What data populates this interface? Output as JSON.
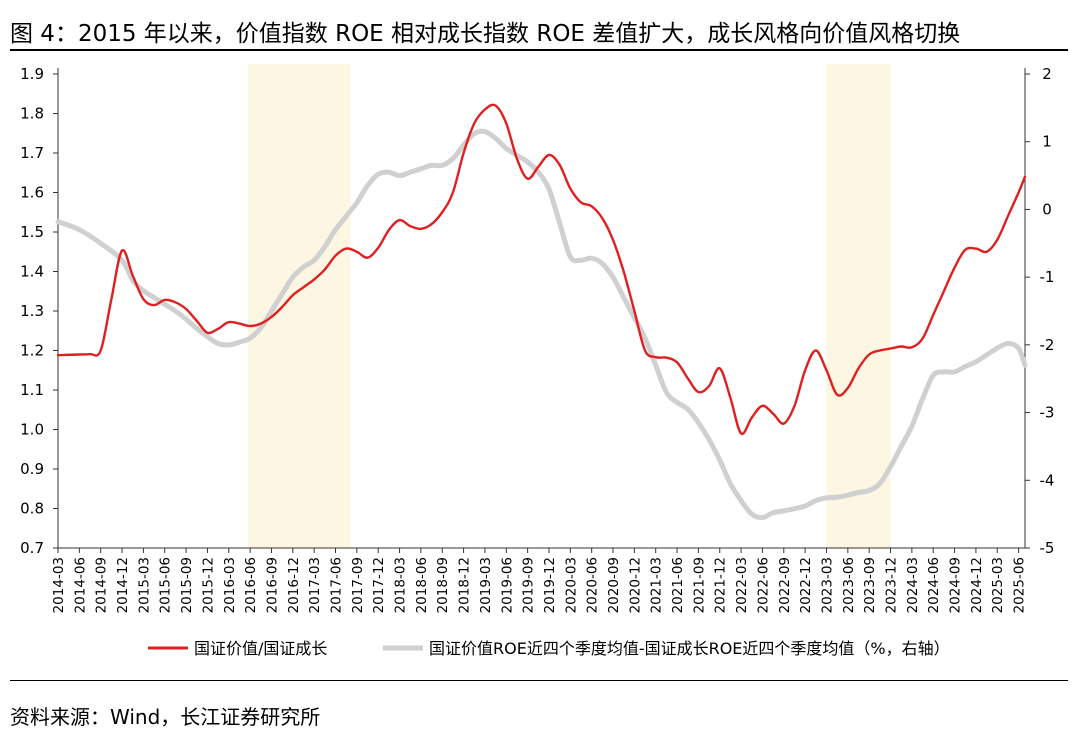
{
  "title": "图 4：2015 年以来，价值指数 ROE 相对成长指数 ROE 差值扩大，成长风格向价值风格切换",
  "source": "资料来源：Wind，长江证券研究所",
  "colors": {
    "red": "#e01f20",
    "gray": "#d0d0d0",
    "shade": "#fdf6e3",
    "axis": "#333333"
  },
  "chart_data": {
    "type": "line",
    "x_ticks": [
      "2014-03",
      "2014-06",
      "2014-09",
      "2014-12",
      "2015-03",
      "2015-06",
      "2015-09",
      "2015-12",
      "2016-03",
      "2016-06",
      "2016-09",
      "2016-12",
      "2017-03",
      "2017-06",
      "2017-09",
      "2017-12",
      "2018-03",
      "2018-06",
      "2018-09",
      "2018-12",
      "2019-03",
      "2019-06",
      "2019-09",
      "2019-12",
      "2020-03",
      "2020-06",
      "2020-09",
      "2020-12",
      "2021-03",
      "2021-06",
      "2021-09",
      "2021-12",
      "2022-03",
      "2022-06",
      "2022-09",
      "2022-12",
      "2023-03",
      "2023-06",
      "2023-09",
      "2023-12",
      "2024-03",
      "2024-06",
      "2024-09",
      "2024-12",
      "2025-03",
      "2025-06"
    ],
    "x_range": [
      0,
      45.3
    ],
    "y_left": {
      "ticks": [
        "0.7",
        "0.8",
        "0.9",
        "1.0",
        "1.1",
        "1.2",
        "1.3",
        "1.4",
        "1.5",
        "1.6",
        "1.7",
        "1.8",
        "1.9"
      ],
      "min": 0.7,
      "max": 1.9
    },
    "y_right": {
      "ticks": [
        "-5",
        "-4",
        "-3",
        "-2",
        "-1",
        "0",
        "1",
        "2"
      ],
      "min": -5,
      "max": 2,
      "label": "右轴"
    },
    "shaded_periods": [
      {
        "start": 8.9,
        "end": 13.7
      },
      {
        "start": 36.0,
        "end": 39.0
      }
    ],
    "series": [
      {
        "name": "国证价值/国证成长",
        "axis": "left",
        "color": "#e01f20",
        "points": [
          [
            0,
            1.188
          ],
          [
            1,
            1.19
          ],
          [
            1.5,
            1.191
          ],
          [
            2,
            1.2
          ],
          [
            2.5,
            1.33
          ],
          [
            3,
            1.453
          ],
          [
            3.5,
            1.39
          ],
          [
            4,
            1.33
          ],
          [
            4.5,
            1.315
          ],
          [
            5,
            1.328
          ],
          [
            5.5,
            1.322
          ],
          [
            6,
            1.305
          ],
          [
            6.5,
            1.275
          ],
          [
            7,
            1.245
          ],
          [
            7.5,
            1.255
          ],
          [
            8,
            1.272
          ],
          [
            8.5,
            1.268
          ],
          [
            9,
            1.262
          ],
          [
            9.5,
            1.268
          ],
          [
            10,
            1.285
          ],
          [
            10.5,
            1.31
          ],
          [
            11,
            1.34
          ],
          [
            11.5,
            1.36
          ],
          [
            12,
            1.38
          ],
          [
            12.5,
            1.405
          ],
          [
            13,
            1.44
          ],
          [
            13.5,
            1.458
          ],
          [
            14,
            1.45
          ],
          [
            14.5,
            1.435
          ],
          [
            15,
            1.46
          ],
          [
            15.5,
            1.505
          ],
          [
            16,
            1.53
          ],
          [
            16.5,
            1.515
          ],
          [
            17,
            1.508
          ],
          [
            17.5,
            1.52
          ],
          [
            18,
            1.55
          ],
          [
            18.5,
            1.6
          ],
          [
            19,
            1.7
          ],
          [
            19.5,
            1.775
          ],
          [
            20,
            1.81
          ],
          [
            20.5,
            1.82
          ],
          [
            21,
            1.775
          ],
          [
            21.5,
            1.685
          ],
          [
            22,
            1.635
          ],
          [
            22.5,
            1.665
          ],
          [
            23,
            1.695
          ],
          [
            23.5,
            1.67
          ],
          [
            24,
            1.61
          ],
          [
            24.5,
            1.575
          ],
          [
            25,
            1.565
          ],
          [
            25.5,
            1.535
          ],
          [
            26,
            1.48
          ],
          [
            26.5,
            1.4
          ],
          [
            27,
            1.3
          ],
          [
            27.5,
            1.2
          ],
          [
            28,
            1.183
          ],
          [
            28.5,
            1.182
          ],
          [
            29,
            1.17
          ],
          [
            29.5,
            1.13
          ],
          [
            30,
            1.095
          ],
          [
            30.5,
            1.11
          ],
          [
            31,
            1.155
          ],
          [
            31.5,
            1.08
          ],
          [
            32,
            0.99
          ],
          [
            32.5,
            1.03
          ],
          [
            33,
            1.06
          ],
          [
            33.5,
            1.04
          ],
          [
            34,
            1.015
          ],
          [
            34.5,
            1.06
          ],
          [
            35,
            1.15
          ],
          [
            35.5,
            1.2
          ],
          [
            36,
            1.15
          ],
          [
            36.5,
            1.088
          ],
          [
            37,
            1.105
          ],
          [
            37.5,
            1.155
          ],
          [
            38,
            1.19
          ],
          [
            38.5,
            1.2
          ],
          [
            39,
            1.205
          ],
          [
            39.5,
            1.21
          ],
          [
            40,
            1.208
          ],
          [
            40.5,
            1.23
          ],
          [
            41,
            1.29
          ],
          [
            41.5,
            1.35
          ],
          [
            42,
            1.41
          ],
          [
            42.5,
            1.455
          ],
          [
            43,
            1.458
          ],
          [
            43.5,
            1.45
          ],
          [
            44,
            1.48
          ],
          [
            44.5,
            1.54
          ],
          [
            45,
            1.6
          ],
          [
            45.3,
            1.64
          ]
        ]
      },
      {
        "name": "国证价值ROE近四个季度均值-国证成长ROE近四个季度均值（%，右轴）",
        "axis": "right",
        "color": "#d0d0d0",
        "points": [
          [
            0,
            -0.18
          ],
          [
            1,
            -0.3
          ],
          [
            2,
            -0.5
          ],
          [
            3,
            -0.75
          ],
          [
            3.5,
            -1.05
          ],
          [
            4,
            -1.2
          ],
          [
            4.5,
            -1.3
          ],
          [
            5,
            -1.4
          ],
          [
            5.5,
            -1.5
          ],
          [
            6,
            -1.62
          ],
          [
            6.5,
            -1.76
          ],
          [
            7,
            -1.88
          ],
          [
            7.5,
            -1.98
          ],
          [
            8,
            -2.0
          ],
          [
            8.5,
            -1.96
          ],
          [
            9,
            -1.9
          ],
          [
            9.5,
            -1.75
          ],
          [
            10,
            -1.5
          ],
          [
            10.5,
            -1.25
          ],
          [
            11,
            -1.0
          ],
          [
            11.5,
            -0.85
          ],
          [
            12,
            -0.75
          ],
          [
            12.5,
            -0.55
          ],
          [
            13,
            -0.3
          ],
          [
            13.5,
            -0.1
          ],
          [
            14,
            0.1
          ],
          [
            14.5,
            0.35
          ],
          [
            15,
            0.52
          ],
          [
            15.5,
            0.55
          ],
          [
            16,
            0.5
          ],
          [
            16.5,
            0.55
          ],
          [
            17,
            0.6
          ],
          [
            17.5,
            0.65
          ],
          [
            18,
            0.65
          ],
          [
            18.5,
            0.75
          ],
          [
            19,
            0.95
          ],
          [
            19.5,
            1.12
          ],
          [
            20,
            1.15
          ],
          [
            20.5,
            1.05
          ],
          [
            21,
            0.9
          ],
          [
            21.5,
            0.8
          ],
          [
            22,
            0.7
          ],
          [
            22.5,
            0.55
          ],
          [
            23,
            0.3
          ],
          [
            23.5,
            -0.2
          ],
          [
            24,
            -0.7
          ],
          [
            24.5,
            -0.75
          ],
          [
            25,
            -0.72
          ],
          [
            25.5,
            -0.8
          ],
          [
            26,
            -1.0
          ],
          [
            26.5,
            -1.3
          ],
          [
            27,
            -1.6
          ],
          [
            27.5,
            -1.9
          ],
          [
            28,
            -2.3
          ],
          [
            28.5,
            -2.7
          ],
          [
            29,
            -2.85
          ],
          [
            29.5,
            -2.95
          ],
          [
            30,
            -3.15
          ],
          [
            30.5,
            -3.4
          ],
          [
            31,
            -3.7
          ],
          [
            31.5,
            -4.05
          ],
          [
            32,
            -4.3
          ],
          [
            32.5,
            -4.5
          ],
          [
            33,
            -4.55
          ],
          [
            33.5,
            -4.48
          ],
          [
            34,
            -4.45
          ],
          [
            34.5,
            -4.42
          ],
          [
            35,
            -4.38
          ],
          [
            35.5,
            -4.3
          ],
          [
            36,
            -4.26
          ],
          [
            36.5,
            -4.25
          ],
          [
            37,
            -4.22
          ],
          [
            37.5,
            -4.18
          ],
          [
            38,
            -4.15
          ],
          [
            38.5,
            -4.05
          ],
          [
            39,
            -3.8
          ],
          [
            39.5,
            -3.5
          ],
          [
            40,
            -3.2
          ],
          [
            40.5,
            -2.8
          ],
          [
            41,
            -2.45
          ],
          [
            41.5,
            -2.4
          ],
          [
            42,
            -2.4
          ],
          [
            42.5,
            -2.32
          ],
          [
            43,
            -2.25
          ],
          [
            43.5,
            -2.15
          ],
          [
            44,
            -2.05
          ],
          [
            44.5,
            -1.98
          ],
          [
            45,
            -2.05
          ],
          [
            45.3,
            -2.3
          ]
        ]
      }
    ]
  }
}
